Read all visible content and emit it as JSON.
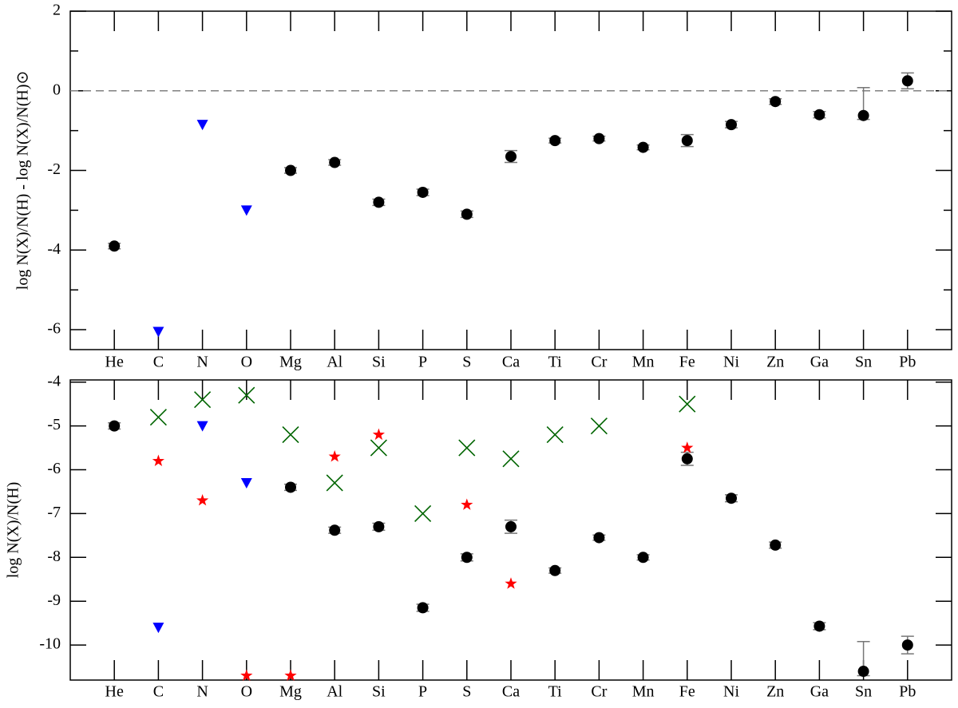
{
  "chart_data": [
    {
      "type": "scatter",
      "y_label": "log N(X)/N(H) - log N(X)/N(H)⊙",
      "categories": [
        "He",
        "C",
        "N",
        "O",
        "Mg",
        "Al",
        "Si",
        "P",
        "S",
        "Ca",
        "Ti",
        "Cr",
        "Mn",
        "Fe",
        "Ni",
        "Zn",
        "Ga",
        "Sn",
        "Pb"
      ],
      "xlim": [
        0,
        20
      ],
      "ylim": [
        -6.5,
        2
      ],
      "yticks": [
        2,
        0,
        -2,
        -4,
        -6
      ],
      "yminorticks": [
        1,
        -1,
        -3,
        -5
      ],
      "reference_line": 0,
      "series": [
        {
          "marker": "circle",
          "color": "#000000",
          "values": [
            -3.9,
            null,
            null,
            null,
            -2.0,
            -1.8,
            -2.8,
            -2.55,
            -3.1,
            -1.65,
            -1.25,
            -1.2,
            -1.42,
            -1.25,
            -0.85,
            -0.27,
            -0.6,
            -0.62,
            0.25
          ],
          "errors_minus": [
            0.07,
            null,
            null,
            null,
            0.07,
            0.07,
            0.08,
            0.08,
            0.08,
            0.15,
            0.06,
            0.06,
            0.06,
            0.15,
            0.08,
            0.07,
            0.08,
            0.1,
            0.2
          ],
          "errors_plus": [
            0.07,
            null,
            null,
            null,
            0.07,
            0.07,
            0.08,
            0.08,
            0.08,
            0.15,
            0.06,
            0.06,
            0.06,
            0.15,
            0.08,
            0.07,
            0.08,
            0.7,
            0.2
          ]
        },
        {
          "marker": "triangle-down",
          "color": "#0000ff",
          "values": [
            null,
            -6.05,
            -0.85,
            -3.0,
            null,
            null,
            null,
            null,
            null,
            null,
            null,
            null,
            null,
            null,
            null,
            null,
            null,
            null,
            null
          ]
        }
      ]
    },
    {
      "type": "scatter",
      "y_label": "log N(X)/N(H)",
      "categories": [
        "He",
        "C",
        "N",
        "O",
        "Mg",
        "Al",
        "Si",
        "P",
        "S",
        "Ca",
        "Ti",
        "Cr",
        "Mn",
        "Fe",
        "Ni",
        "Zn",
        "Ga",
        "Sn",
        "Pb"
      ],
      "xlim": [
        0,
        20
      ],
      "ylim": [
        -10.8,
        -3.95
      ],
      "yticks": [
        -4,
        -5,
        -6,
        -7,
        -8,
        -9,
        -10
      ],
      "series": [
        {
          "marker": "circle",
          "color": "#000000",
          "values": [
            -5.0,
            null,
            null,
            null,
            -6.4,
            -7.38,
            -7.3,
            -9.15,
            -8.0,
            -7.3,
            -8.3,
            -7.55,
            -8.0,
            -5.75,
            -6.65,
            -7.72,
            -9.57,
            -10.6,
            -10.0
          ],
          "errors_minus": [
            0.07,
            null,
            null,
            null,
            0.07,
            0.07,
            0.08,
            0.08,
            0.08,
            0.15,
            0.06,
            0.06,
            0.06,
            0.15,
            0.08,
            0.07,
            0.08,
            0.1,
            0.2
          ],
          "errors_plus": [
            0.07,
            null,
            null,
            null,
            0.07,
            0.07,
            0.08,
            0.08,
            0.08,
            0.15,
            0.06,
            0.06,
            0.06,
            0.15,
            0.08,
            0.07,
            0.08,
            0.68,
            0.2
          ]
        },
        {
          "marker": "triangle-down",
          "color": "#0000ff",
          "values": [
            null,
            -9.6,
            -5.0,
            -6.3,
            null,
            null,
            null,
            null,
            null,
            null,
            null,
            null,
            null,
            null,
            null,
            null,
            null,
            null,
            null
          ]
        },
        {
          "marker": "star",
          "color": "#ff0000",
          "values": [
            null,
            -5.8,
            -6.7,
            -10.7,
            -10.7,
            -5.7,
            -5.2,
            null,
            -6.8,
            -8.6,
            null,
            null,
            null,
            -5.5,
            null,
            null,
            null,
            null,
            null
          ]
        },
        {
          "marker": "x",
          "color": "#006400",
          "values": [
            null,
            -4.8,
            -4.4,
            -4.3,
            -5.2,
            -6.3,
            -5.5,
            -7.0,
            -5.5,
            -5.75,
            -5.2,
            -5.0,
            null,
            -4.5,
            null,
            null,
            null,
            null,
            null
          ]
        }
      ]
    }
  ]
}
